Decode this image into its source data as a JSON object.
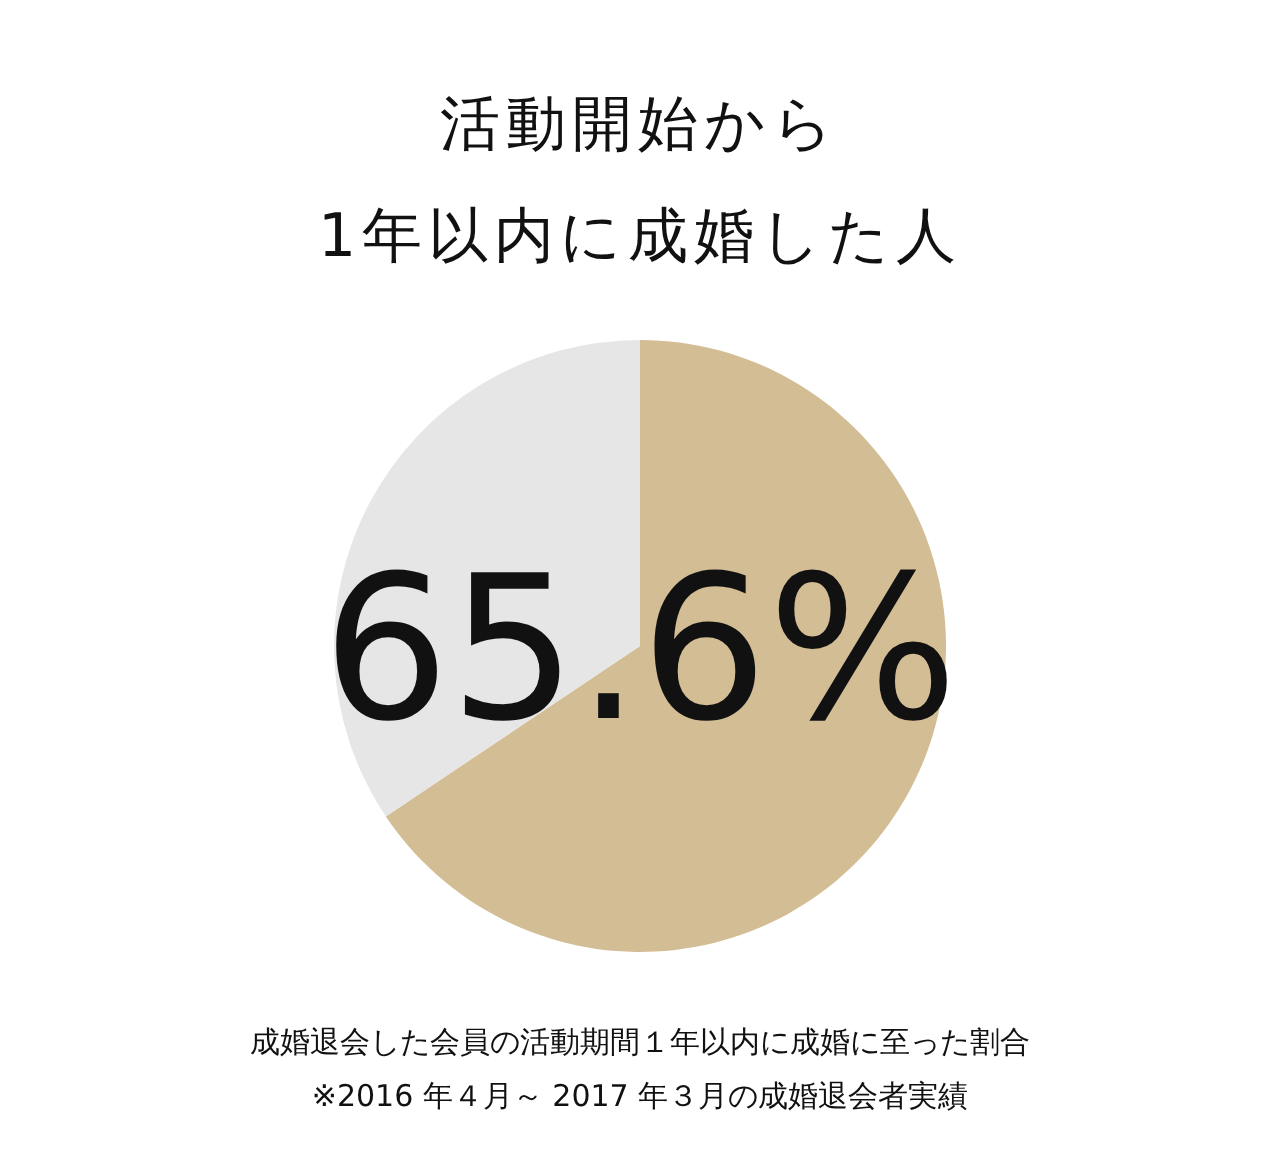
{
  "chart_data": {
    "type": "pie",
    "title": "活動開始から\n1年以内に成婚した人",
    "categories": [
      null,
      null
    ],
    "values": [
      65.6,
      34.4
    ],
    "colors": [
      "#d3bd95",
      "#e6e6e6"
    ],
    "value_labels": [
      "65.6%",
      null
    ],
    "annotations": [
      "成婚退会した会員の活動期間１年以内に成婚に至った割合",
      "※2016 年４月～ 2017 年３月の成婚退会者実績"
    ]
  }
}
